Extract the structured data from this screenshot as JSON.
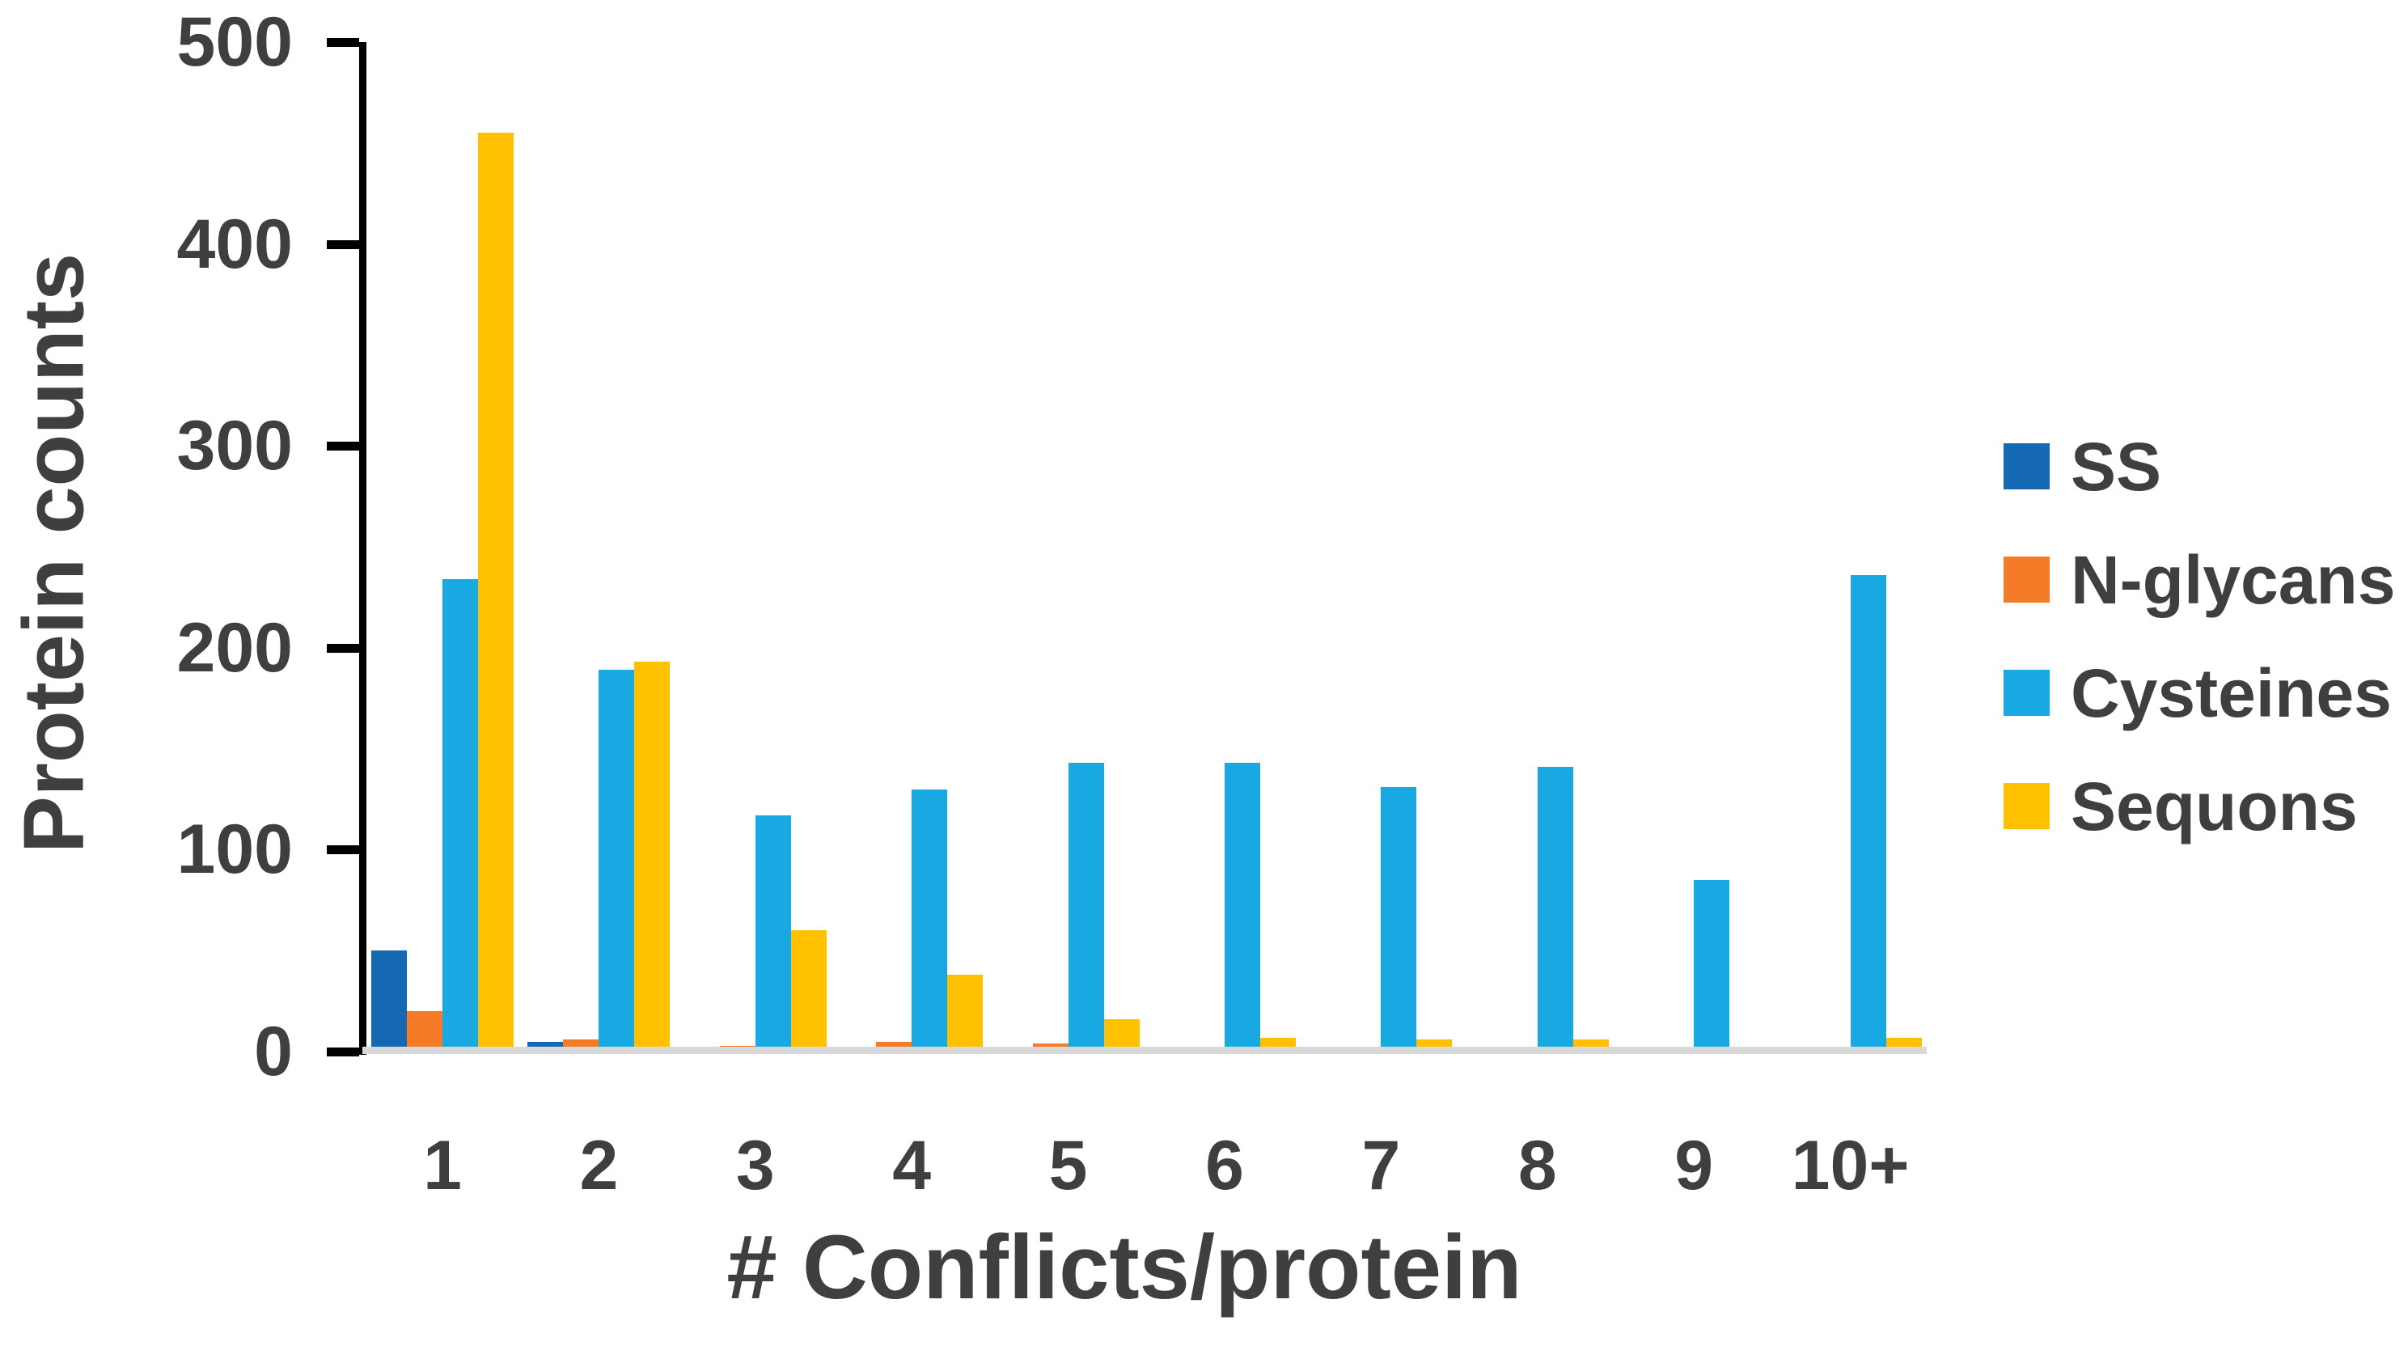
{
  "chart_data": {
    "type": "bar",
    "title": "",
    "xlabel": "# Conflicts/protein",
    "ylabel": "Protein counts",
    "categories": [
      "1",
      "2",
      "3",
      "4",
      "5",
      "6",
      "7",
      "8",
      "9",
      "10+"
    ],
    "series": [
      {
        "name": "SS",
        "color": "#1569b3",
        "values": [
          50,
          5,
          0,
          0,
          0,
          0,
          0,
          0,
          0,
          0
        ]
      },
      {
        "name": "N-glycans",
        "color": "#f47b28",
        "values": [
          20,
          6,
          3,
          5,
          4,
          0,
          0,
          0,
          0,
          0
        ]
      },
      {
        "name": "Cysteines",
        "color": "#18a8e2",
        "values": [
          234,
          189,
          117,
          130,
          143,
          143,
          131,
          141,
          85,
          236
        ]
      },
      {
        "name": "Sequons",
        "color": "#ffc000",
        "values": [
          455,
          193,
          60,
          38,
          16,
          7,
          6,
          6,
          0,
          7
        ]
      }
    ],
    "y_ticks": [
      0,
      100,
      200,
      300,
      400,
      500
    ],
    "ylim": [
      0,
      500
    ],
    "grid": false,
    "legend_position": "right",
    "colors": {
      "axis": "#000000",
      "baseline": "#d9d9d9",
      "text": "#3f3f3f"
    }
  }
}
